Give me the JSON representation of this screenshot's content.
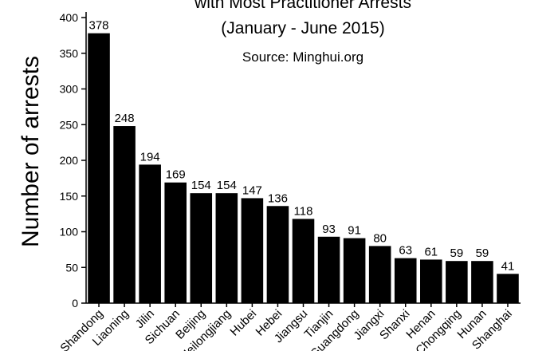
{
  "chart_data": {
    "type": "bar",
    "title": "with Most Practitioner Arrests",
    "subtitle": "(January - June 2015)",
    "source": "Source: Minghui.org",
    "y_label": "Number of arrests",
    "categories": [
      "Shandong",
      "Liaoning",
      "Jilin",
      "Sichuan",
      "Beijing",
      "Heilongjiang",
      "Hubei",
      "Hebei",
      "Jiangsu",
      "Tianjin",
      "Guangdong",
      "Jiangxi",
      "Shanxi",
      "Henan",
      "Chongqing",
      "Hunan",
      "Shanghai"
    ],
    "values": [
      378,
      248,
      194,
      169,
      154,
      154,
      147,
      136,
      118,
      93,
      91,
      80,
      63,
      61,
      59,
      59,
      41
    ],
    "color": "#000000",
    "ylim": [
      0,
      400
    ],
    "yticks": [
      0,
      50,
      100,
      150,
      200,
      250,
      300,
      350,
      400
    ],
    "grid": false
  }
}
